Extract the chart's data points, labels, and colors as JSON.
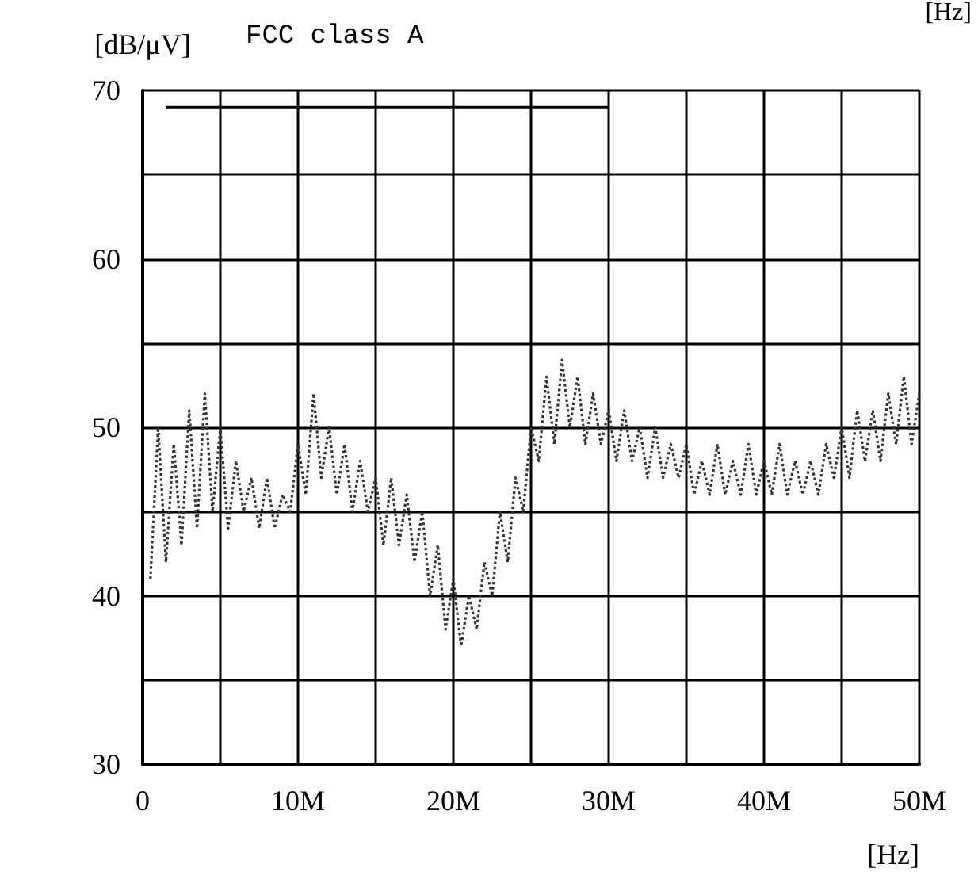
{
  "chart_data": {
    "type": "line",
    "title": "FCC class A",
    "xlabel": "[Hz]",
    "ylabel": "[dB/μV]",
    "annotations": [
      "[Hz]"
    ],
    "xlim": [
      0,
      50
    ],
    "xticks": [
      {
        "value": 0,
        "label": "0"
      },
      {
        "value": 5,
        "label": null
      },
      {
        "value": 10,
        "label": "10M"
      },
      {
        "value": 15,
        "label": null
      },
      {
        "value": 20,
        "label": "20M"
      },
      {
        "value": 25,
        "label": null
      },
      {
        "value": 30,
        "label": "30M"
      },
      {
        "value": 35,
        "label": null
      },
      {
        "value": 40,
        "label": "40M"
      },
      {
        "value": 45,
        "label": null
      },
      {
        "value": 50,
        "label": "50M"
      }
    ],
    "ylim": [
      30,
      70
    ],
    "yticks": [
      30,
      {
        "value": 35,
        "label": null
      },
      40,
      {
        "value": 45,
        "label": null
      },
      50,
      {
        "value": 55,
        "label": null
      },
      60,
      {
        "value": 65,
        "label": null
      },
      70
    ],
    "grid": true,
    "marker": "none",
    "series": [
      {
        "color": "#000000",
        "line_style": "solid",
        "x": [
          1.5,
          30
        ],
        "values": [
          69,
          69
        ]
      },
      {
        "color": "#333333",
        "line_style": "dotted",
        "x": [
          0.5,
          1,
          1.5,
          2,
          2.5,
          3,
          3.5,
          4,
          4.5,
          5,
          5.5,
          6,
          6.5,
          7,
          7.5,
          8,
          8.5,
          9,
          9.5,
          10,
          10.5,
          11,
          11.5,
          12,
          12.5,
          13,
          13.5,
          14,
          14.5,
          15,
          15.5,
          16,
          16.5,
          17,
          17.5,
          18,
          18.5,
          19,
          19.5,
          20,
          20.5,
          21,
          21.5,
          22,
          22.5,
          23,
          23.5,
          24,
          24.5,
          25,
          25.5,
          26,
          26.5,
          27,
          27.5,
          28,
          28.5,
          29,
          29.5,
          30,
          30.5,
          31,
          31.5,
          32,
          32.5,
          33,
          33.5,
          34,
          34.5,
          35,
          35.5,
          36,
          36.5,
          37,
          37.5,
          38,
          38.5,
          39,
          39.5,
          40,
          40.5,
          41,
          41.5,
          42,
          42.5,
          43,
          43.5,
          44,
          44.5,
          45,
          45.5,
          46,
          46.5,
          47,
          47.5,
          48,
          48.5,
          49,
          49.5,
          50
        ],
        "values": [
          41,
          50,
          42,
          49,
          43,
          51,
          44,
          52,
          45,
          50,
          44,
          48,
          45,
          47,
          44,
          47,
          44,
          46,
          45,
          49,
          46,
          52,
          47,
          50,
          46,
          49,
          45,
          48,
          45,
          47,
          43,
          47,
          43,
          46,
          42,
          45,
          40,
          43,
          38,
          41,
          37,
          40,
          38,
          42,
          40,
          45,
          42,
          47,
          45,
          50,
          48,
          53,
          49,
          54,
          50,
          53,
          49,
          52,
          49,
          51,
          48,
          51,
          48,
          50,
          47,
          50,
          47,
          49,
          47,
          49,
          46,
          48,
          46,
          49,
          46,
          48,
          46,
          49,
          46,
          48,
          46,
          49,
          46,
          48,
          46,
          48,
          46,
          49,
          47,
          50,
          47,
          51,
          48,
          51,
          48,
          52,
          49,
          53,
          49,
          52
        ]
      }
    ]
  }
}
